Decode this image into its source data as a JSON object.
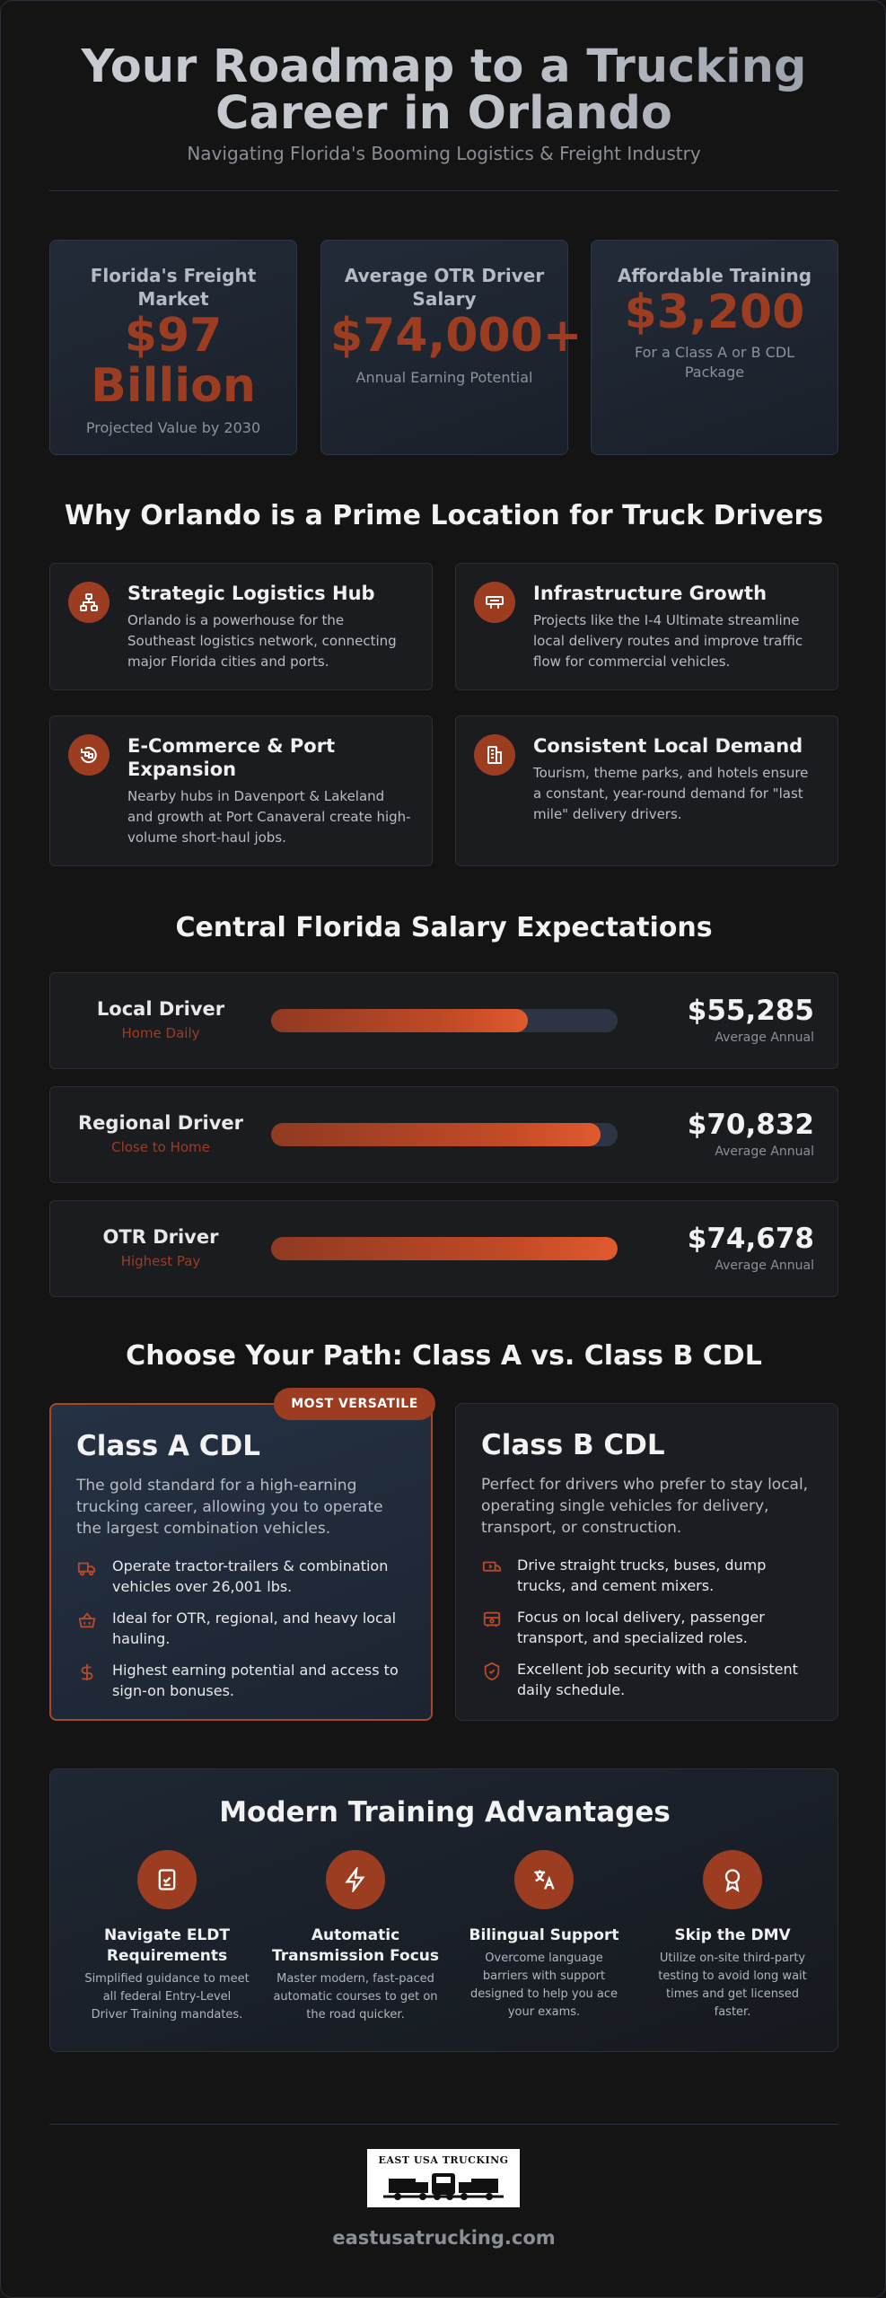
{
  "header": {
    "title_line1": "Your Roadmap to a Trucking",
    "title_line2": "Career in Orlando",
    "subtitle": "Navigating Florida's Booming Logistics & Freight Industry"
  },
  "stats": [
    {
      "label": "Florida's Freight Market",
      "value_line1": "$97",
      "value_line2": "Billion",
      "sub": "Projected Value by 2030"
    },
    {
      "label": "Average OTR Driver Salary",
      "value": "$74,000+",
      "sub": "Annual Earning Potential"
    },
    {
      "label": "Affordable Training",
      "value": "$3,200",
      "sub": "For a Class A or B CDL Package"
    }
  ],
  "why": {
    "title": "Why Orlando is a Prime Location for Truck Drivers",
    "cards": [
      {
        "icon": "network-icon",
        "title": "Strategic Logistics Hub",
        "text": "Orlando is a powerhouse for the Southeast logistics network, connecting major Florida cities and ports."
      },
      {
        "icon": "road-sign-icon",
        "title": "Infrastructure Growth",
        "text": "Projects like the I-4 Ultimate streamline local delivery routes and improve traffic flow for commercial vehicles."
      },
      {
        "icon": "box-ship-icon",
        "title_line1": "E-Commerce & Port",
        "title_line2": "Expansion",
        "text": "Nearby hubs in Davenport & Lakeland and growth at Port Canaveral create high-volume short-haul jobs."
      },
      {
        "icon": "building-icon",
        "title": "Consistent Local Demand",
        "text": "Tourism, theme parks, and hotels ensure a constant, year-round demand for \"last mile\" delivery drivers."
      }
    ]
  },
  "salary": {
    "title": "Central Florida Salary Expectations",
    "rows": [
      {
        "role": "Local Driver",
        "tag": "Home Daily",
        "amount": "$55,285",
        "note": "Average Annual",
        "fraction": 0.74
      },
      {
        "role": "Regional Driver",
        "tag": "Close to Home",
        "amount": "$70,832",
        "note": "Average Annual",
        "fraction": 0.95
      },
      {
        "role": "OTR Driver",
        "tag": "Highest Pay",
        "amount": "$74,678",
        "note": "Average Annual",
        "fraction": 1.0
      }
    ]
  },
  "paths": {
    "title": "Choose Your Path: Class A vs. Class B CDL",
    "badge": "MOST VERSATILE",
    "class_a": {
      "title": "Class A CDL",
      "desc": "The gold standard for a high-earning trucking career, allowing you to operate the largest combination vehicles.",
      "items": [
        {
          "icon": "truck-icon",
          "text": "Operate tractor-trailers & combination vehicles over 26,001 lbs."
        },
        {
          "icon": "basket-icon",
          "text": "Ideal for OTR, regional, and heavy local hauling."
        },
        {
          "icon": "dollar-icon",
          "text": "Highest earning potential and access to sign-on bonuses."
        }
      ]
    },
    "class_b": {
      "title": "Class B CDL",
      "desc": "Perfect for drivers who prefer to stay local, operating single vehicles for delivery, transport, or construction.",
      "items": [
        {
          "icon": "delivery-truck-icon",
          "text": "Drive straight trucks, buses, dump trucks, and cement mixers."
        },
        {
          "icon": "bus-icon",
          "text": "Focus on local delivery, passenger transport, and specialized roles."
        },
        {
          "icon": "shield-check-icon",
          "text": "Excellent job security with a consistent daily schedule."
        }
      ]
    }
  },
  "training": {
    "title": "Modern Training Advantages",
    "cols": [
      {
        "icon": "clipboard-check-icon",
        "title_line1": "Navigate ELDT",
        "title_line2": "Requirements",
        "text": "Simplified guidance to meet all federal Entry-Level Driver Training mandates."
      },
      {
        "icon": "lightning-icon",
        "title_line1": "Automatic",
        "title_line2": "Transmission Focus",
        "text": "Master modern, fast-paced automatic courses to get on the road quicker."
      },
      {
        "icon": "translate-icon",
        "title_line1": "Bilingual Support",
        "title_line2": "",
        "text": "Overcome language barriers with support designed to help you ace your exams."
      },
      {
        "icon": "award-icon",
        "title_line1": "Skip the DMV",
        "title_line2": "",
        "text": "Utilize on-site third-party testing to avoid long wait times and get licensed faster."
      }
    ]
  },
  "footer": {
    "logo_text": "EAST USA TRUCKING",
    "site": "eastusatrucking.com"
  },
  "colors": {
    "accent": "#9c3d22",
    "background": "#141414",
    "card": "#1b1c20"
  }
}
